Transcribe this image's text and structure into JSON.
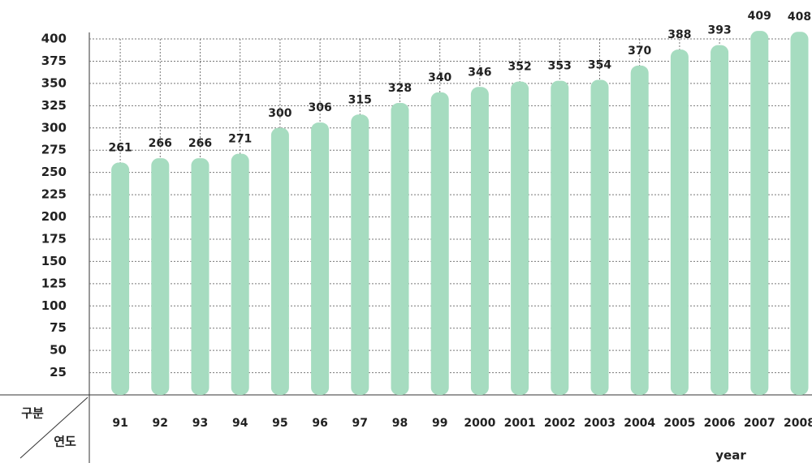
{
  "chart_data": {
    "type": "bar",
    "categories": [
      "91",
      "92",
      "93",
      "94",
      "95",
      "96",
      "97",
      "98",
      "99",
      "2000",
      "2001",
      "2002",
      "2003",
      "2004",
      "2005",
      "2006",
      "2007",
      "2008"
    ],
    "values": [
      261,
      266,
      266,
      271,
      300,
      306,
      315,
      328,
      340,
      346,
      352,
      353,
      354,
      370,
      388,
      393,
      409,
      408
    ],
    "color": "#a6dcc0",
    "ylim": [
      0,
      400
    ],
    "yticks": [
      25,
      50,
      75,
      100,
      125,
      150,
      175,
      200,
      225,
      250,
      275,
      300,
      325,
      350,
      375,
      400
    ],
    "grid": true,
    "x_label": "year",
    "corner_top": "구분",
    "corner_bottom": "연도"
  }
}
